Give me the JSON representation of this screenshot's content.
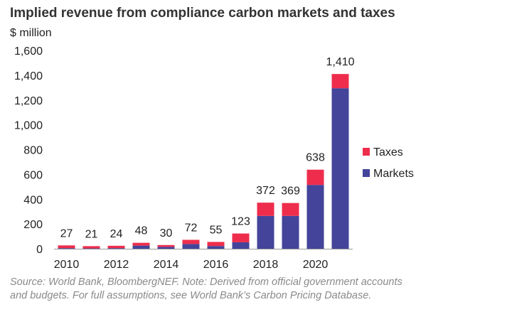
{
  "title": "Implied revenue from compliance carbon markets and taxes",
  "unit_label": "$ million",
  "footnote": {
    "line1": "Source: World Bank, BloombergNEF. Note: Derived from official government accounts",
    "line2": "and budgets. For full assumptions, see World Bank’s Carbon Pricing Database."
  },
  "colors": {
    "Taxes": "#ee2d4d",
    "Markets": "#43449a",
    "axis": "#999999",
    "text": "#222222"
  },
  "chart_data": {
    "type": "bar",
    "stacked": true,
    "categories": [
      "2010",
      "2011",
      "2012",
      "2013",
      "2014",
      "2015",
      "2016",
      "2017",
      "2018",
      "2019",
      "2020",
      "2021"
    ],
    "x_tick_labels": [
      "2010",
      "",
      "2012",
      "",
      "2014",
      "",
      "2016",
      "",
      "2018",
      "",
      "2020",
      ""
    ],
    "series": [
      {
        "name": "Markets",
        "values": [
          5,
          3,
          5,
          25,
          15,
          38,
          22,
          52,
          265,
          265,
          515,
          1295
        ]
      },
      {
        "name": "Taxes",
        "values": [
          22,
          18,
          19,
          23,
          15,
          34,
          33,
          71,
          107,
          104,
          123,
          115
        ]
      }
    ],
    "totals": [
      27,
      21,
      24,
      48,
      30,
      72,
      55,
      123,
      372,
      369,
      638,
      1410
    ],
    "total_labels": [
      "27",
      "21",
      "24",
      "48",
      "30",
      "72",
      "55",
      "123",
      "372",
      "369",
      "638",
      "1,410"
    ],
    "y_ticks": [
      0,
      200,
      400,
      600,
      800,
      1000,
      1200,
      1400,
      1600
    ],
    "y_tick_labels": [
      "0",
      "200",
      "400",
      "600",
      "800",
      "1,000",
      "1,200",
      "1,400",
      "1,600"
    ],
    "ylim": [
      0,
      1600
    ],
    "legend": [
      "Taxes",
      "Markets"
    ],
    "legend_position": "right",
    "grid": false
  }
}
